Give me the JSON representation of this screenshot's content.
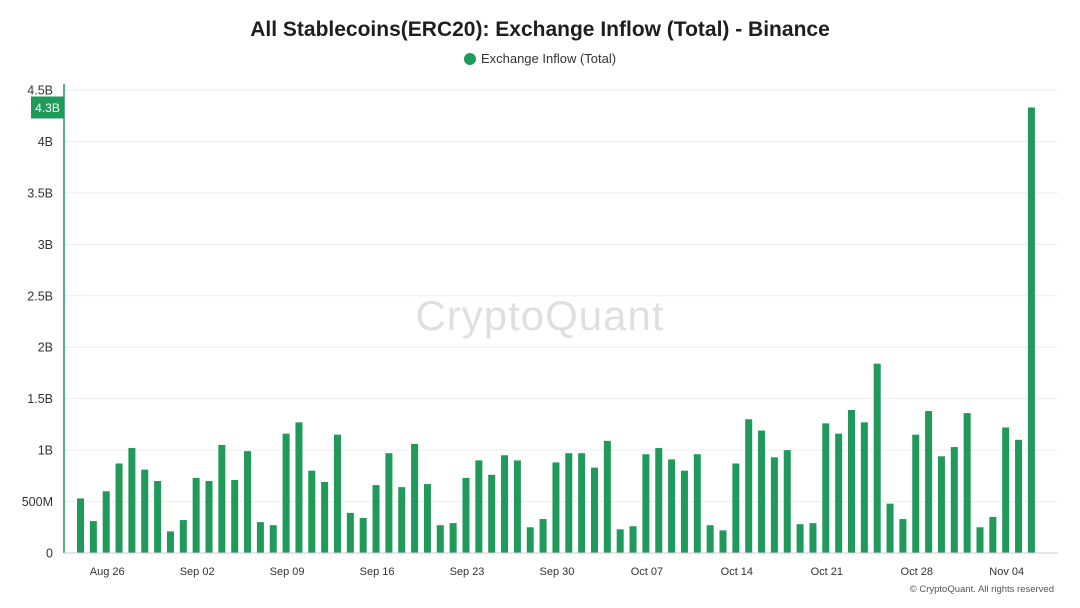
{
  "title": "All Stablecoins(ERC20): Exchange Inflow (Total) - Binance",
  "watermark": "CryptoQuant",
  "footer": "© CryptoQuant. All rights reserved",
  "colors": {
    "bar": "#1f9a5a",
    "axis": "#1f9a5a",
    "grid": "#eeeeee",
    "text": "#333333"
  },
  "chart_data": {
    "type": "bar",
    "title": "All Stablecoins(ERC20): Exchange Inflow (Total) - Binance",
    "xlabel": "",
    "ylabel": "",
    "ylim": [
      0,
      4.5
    ],
    "y_unit": "billion",
    "grid": true,
    "legend_position": "top-center",
    "current_value_label": "4.3B",
    "y_ticks": [
      {
        "value": 0,
        "label": "0"
      },
      {
        "value": 0.5,
        "label": "500M"
      },
      {
        "value": 1,
        "label": "1B"
      },
      {
        "value": 1.5,
        "label": "1.5B"
      },
      {
        "value": 2,
        "label": "2B"
      },
      {
        "value": 2.5,
        "label": "2.5B"
      },
      {
        "value": 3,
        "label": "3B"
      },
      {
        "value": 3.5,
        "label": "3.5B"
      },
      {
        "value": 4,
        "label": "4B"
      },
      {
        "value": 4.5,
        "label": "4.5B"
      }
    ],
    "x_ticks": [
      {
        "index": 2,
        "label": "Aug 26"
      },
      {
        "index": 9,
        "label": "Sep 02"
      },
      {
        "index": 16,
        "label": "Sep 09"
      },
      {
        "index": 23,
        "label": "Sep 16"
      },
      {
        "index": 30,
        "label": "Sep 23"
      },
      {
        "index": 37,
        "label": "Sep 30"
      },
      {
        "index": 44,
        "label": "Oct 07"
      },
      {
        "index": 51,
        "label": "Oct 14"
      },
      {
        "index": 58,
        "label": "Oct 21"
      },
      {
        "index": 65,
        "label": "Oct 28"
      },
      {
        "index": 72,
        "label": "Nov 04"
      }
    ],
    "series": [
      {
        "name": "Exchange Inflow (Total)",
        "values": [
          0.53,
          0.31,
          0.6,
          0.87,
          1.02,
          0.81,
          0.7,
          0.21,
          0.32,
          0.73,
          0.7,
          1.05,
          0.71,
          0.99,
          0.3,
          0.27,
          1.16,
          1.27,
          0.8,
          0.69,
          1.15,
          0.39,
          0.34,
          0.66,
          0.97,
          0.64,
          1.06,
          0.67,
          0.27,
          0.29,
          0.73,
          0.9,
          0.76,
          0.95,
          0.9,
          0.25,
          0.33,
          0.88,
          0.97,
          0.97,
          0.83,
          1.09,
          0.23,
          0.26,
          0.96,
          1.02,
          0.91,
          0.8,
          0.96,
          0.27,
          0.22,
          0.87,
          1.3,
          1.19,
          0.93,
          1.0,
          0.28,
          0.29,
          1.26,
          1.16,
          1.39,
          1.27,
          1.84,
          0.48,
          0.33,
          1.15,
          1.38,
          0.94,
          1.03,
          1.36,
          0.25,
          0.35,
          1.22,
          1.1,
          4.33
        ]
      }
    ]
  }
}
